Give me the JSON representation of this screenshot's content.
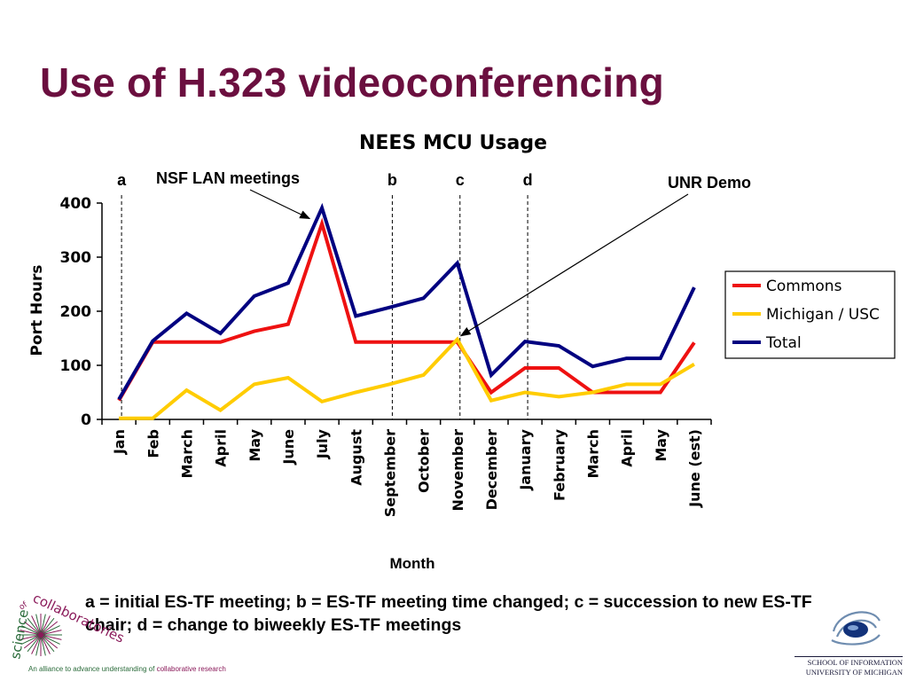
{
  "slide": {
    "title": "Use of H.323 videoconferencing",
    "caption": "a = initial ES-TF meeting; b = ES-TF meeting time changed; c = succession to new ES-TF chair; d = change to biweekly ES-TF meetings"
  },
  "chart_data": {
    "type": "line",
    "title": "NEES MCU Usage",
    "xlabel": "Month",
    "ylabel": "Port Hours",
    "ylim": [
      0,
      400
    ],
    "yticks": [
      0,
      100,
      200,
      300,
      400
    ],
    "grid": false,
    "legend_position": "right",
    "categories": [
      "Jan",
      "Feb",
      "March",
      "April",
      "May",
      "June",
      "July",
      "August",
      "September",
      "October",
      "November",
      "December",
      "January",
      "February",
      "March",
      "April",
      "May",
      "June (est)"
    ],
    "series": [
      {
        "name": "Commons",
        "color": "#ee1111",
        "values": [
          35,
          143,
          143,
          143,
          163,
          176,
          362,
          143,
          143,
          143,
          143,
          50,
          95,
          95,
          50,
          50,
          50,
          142
        ]
      },
      {
        "name": "Michigan / USC",
        "color": "#ffcc00",
        "values": [
          2,
          2,
          54,
          17,
          65,
          77,
          33,
          50,
          65,
          82,
          148,
          35,
          50,
          42,
          50,
          65,
          65,
          102
        ]
      },
      {
        "name": "Total",
        "color": "#000080",
        "values": [
          37,
          145,
          196,
          159,
          228,
          252,
          391,
          191,
          207,
          224,
          289,
          82,
          144,
          136,
          98,
          113,
          113,
          244
        ]
      }
    ],
    "markers": [
      {
        "label": "a",
        "category": "Jan"
      },
      {
        "label": "b",
        "category": "September"
      },
      {
        "label": "c",
        "category": "November"
      },
      {
        "label": "d",
        "category": "January"
      }
    ],
    "annotations": [
      {
        "text": "NSF LAN meetings",
        "points_to": {
          "category": "July",
          "series": "Total"
        }
      },
      {
        "text": "UNR Demo",
        "points_to": {
          "category": "November",
          "series": "Michigan / USC"
        }
      }
    ]
  },
  "branding": {
    "left_logo_words": [
      "science",
      "of",
      "collaboratories"
    ],
    "left_logo_tagline": "An alliance to advance understanding of",
    "left_logo_tagline_highlight": "collaborative research",
    "right_logo_line1": "SCHOOL OF INFORMATION",
    "right_logo_line2": "UNIVERSITY OF MICHIGAN"
  }
}
